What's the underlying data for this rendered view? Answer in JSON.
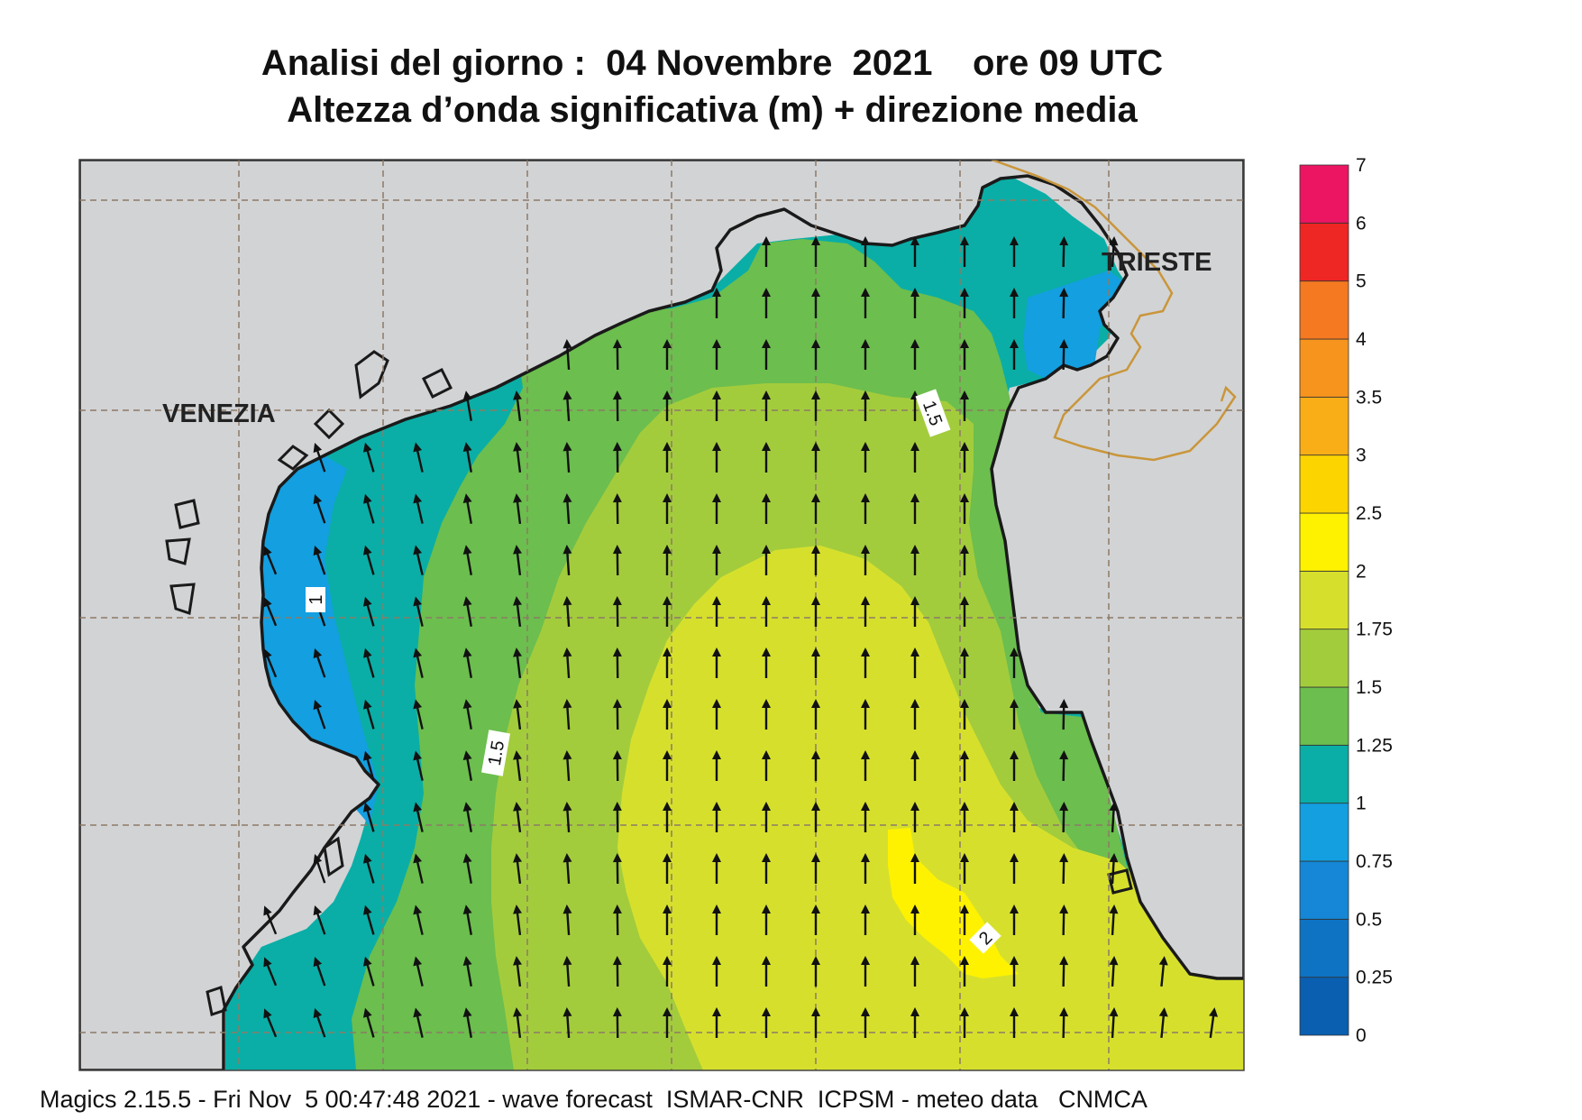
{
  "title": {
    "line1": "Analisi del giorno :  04 Novembre  2021    ore 09 UTC",
    "line2": "Altezza d’onda significativa (m) + direzione media"
  },
  "footer": "Magics 2.15.5 - Fri Nov  5 00:47:48 2021 - wave forecast  ISMAR-CNR  ICPSM - meteo data   CNMCA",
  "places": {
    "venezia": "VENEZIA",
    "trieste": "TRIESTE"
  },
  "contour_labels": {
    "one": "1",
    "one_five_a": "1.5",
    "one_five_b": "1.5",
    "two": "2"
  },
  "legend": {
    "unit": "m",
    "bands": [
      {
        "from": "0",
        "to": "0.25",
        "color": "#0a5fb0"
      },
      {
        "from": "0.25",
        "to": "0.5",
        "color": "#0e73c3"
      },
      {
        "from": "0.5",
        "to": "0.75",
        "color": "#1587d6"
      },
      {
        "from": "0.75",
        "to": "1",
        "color": "#139fe0"
      },
      {
        "from": "1",
        "to": "1.25",
        "color": "#0aaea6"
      },
      {
        "from": "1.25",
        "to": "1.5",
        "color": "#6cbe4e"
      },
      {
        "from": "1.5",
        "to": "1.75",
        "color": "#a3cc3c"
      },
      {
        "from": "1.75",
        "to": "2",
        "color": "#d6e02c"
      },
      {
        "from": "2",
        "to": "2.5",
        "color": "#fff200"
      },
      {
        "from": "2.5",
        "to": "3",
        "color": "#fcd400"
      },
      {
        "from": "3",
        "to": "3.5",
        "color": "#f9ad17"
      },
      {
        "from": "3.5",
        "to": "4",
        "color": "#f7941d"
      },
      {
        "from": "4",
        "to": "5",
        "color": "#f47920"
      },
      {
        "from": "5",
        "to": "6",
        "color": "#ee2624"
      },
      {
        "from": "6",
        "to": "7",
        "color": "#ec1562"
      }
    ],
    "ticks": [
      "0",
      "0.25",
      "0.5",
      "0.75",
      "1",
      "1.25",
      "1.5",
      "1.75",
      "2",
      "2.5",
      "3",
      "3.5",
      "4",
      "5",
      "6",
      "7"
    ]
  },
  "colors": {
    "land": "#d2d3d5",
    "coast": "#1a1a1a",
    "border": "#c9963a",
    "grid": "#8c7b66",
    "arrow": "#111111"
  },
  "wave_direction": "north / north-northwest",
  "icons": {
    "arrow": "wave-direction-arrow-icon"
  }
}
